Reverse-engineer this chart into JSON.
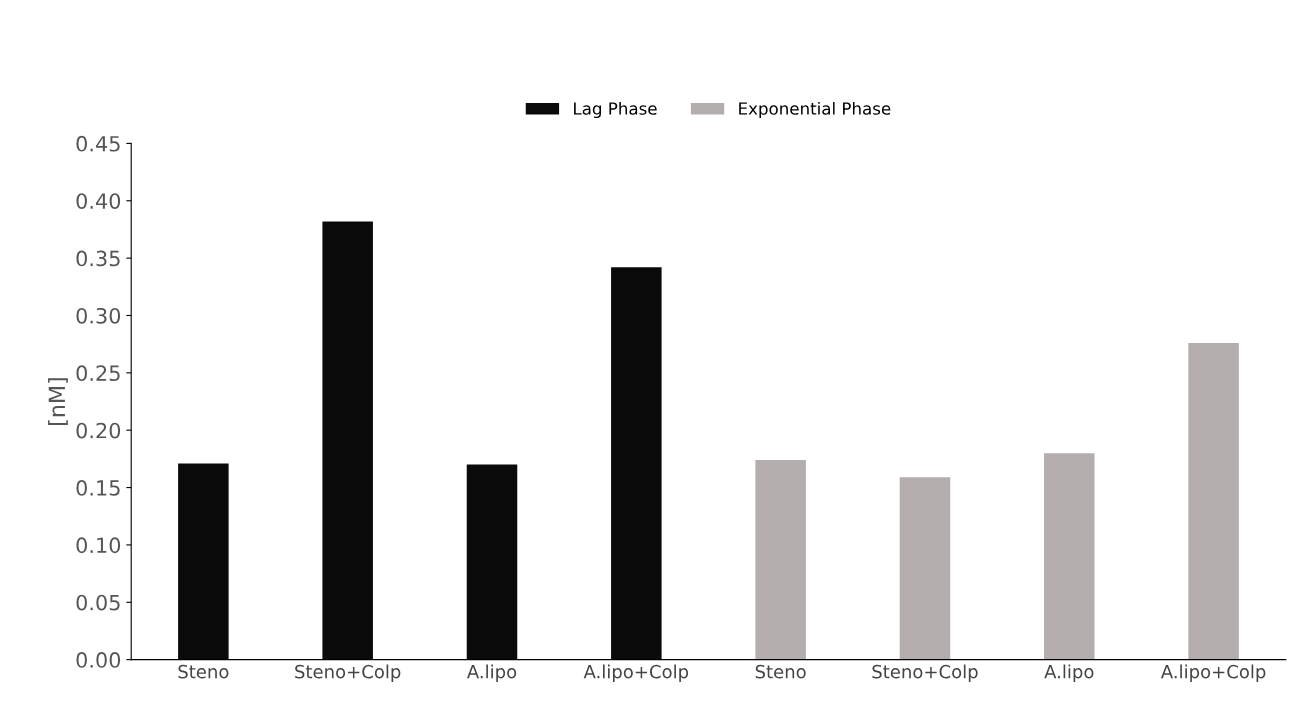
{
  "chart_data": {
    "type": "bar",
    "ylabel": "[nM]",
    "categories": [
      "Steno",
      "Steno+Colp",
      "A.lipo",
      "A.lipo+Colp",
      "Steno",
      "Steno+Colp",
      "A.lipo",
      "A.lipo+Colp"
    ],
    "series": [
      {
        "name": "Lag Phase",
        "color": "#0a0a0a",
        "values": [
          0.171,
          0.382,
          0.17,
          0.342,
          null,
          null,
          null,
          null
        ]
      },
      {
        "name": "Exponential Phase",
        "color": "#b3adad",
        "values": [
          null,
          null,
          null,
          null,
          0.174,
          0.159,
          0.18,
          0.276
        ]
      }
    ],
    "ylim": [
      0,
      0.45
    ],
    "yticks": [
      {
        "value": 0,
        "label": "0.00"
      },
      {
        "value": 0.05,
        "label": "0.05"
      },
      {
        "value": 0.1,
        "label": "0.10"
      },
      {
        "value": 0.15,
        "label": "0.15"
      },
      {
        "value": 0.2,
        "label": "0.20"
      },
      {
        "value": 0.25,
        "label": "0.25"
      },
      {
        "value": 0.3,
        "label": "0.30"
      },
      {
        "value": 0.35,
        "label": "0.35"
      },
      {
        "value": 0.4,
        "label": "0.40"
      },
      {
        "value": 0.45,
        "label": "0.45"
      }
    ],
    "grid": false,
    "legend": "top"
  }
}
